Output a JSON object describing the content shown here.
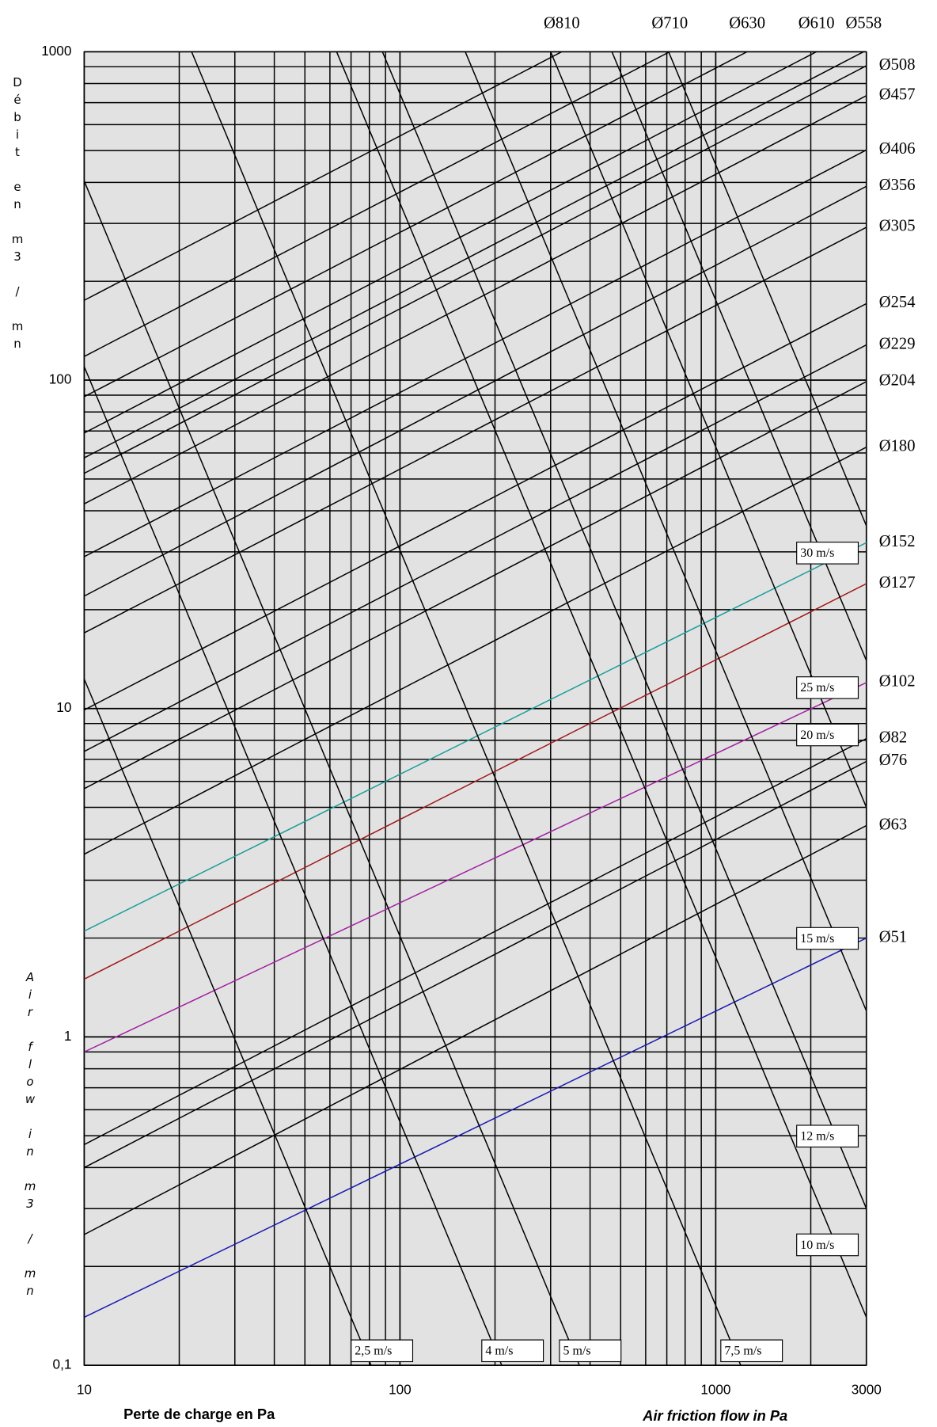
{
  "chart_data": {
    "type": "line",
    "x_label": "Perte de charge en Pa",
    "x_label_en": "Air friction flow in  Pa",
    "y_label": "Débit en m3 / mn",
    "y_label_en": "Air flow in m3 / mn",
    "log_x": true,
    "log_y": true,
    "grid": true,
    "xlim": [
      10,
      3000
    ],
    "ylim": [
      0.1,
      1000
    ],
    "xticks": [
      10,
      100,
      1000,
      3000
    ],
    "yticks": [
      {
        "value": 0.1,
        "label": "0,1"
      },
      1,
      10,
      100,
      1000
    ],
    "x_minor_ticks": [
      20,
      30,
      40,
      50,
      60,
      70,
      80,
      90,
      200,
      300,
      400,
      500,
      600,
      700,
      800,
      900,
      2000
    ],
    "y_minor_ticks": [
      0.2,
      0.3,
      0.4,
      0.5,
      0.6,
      0.7,
      0.8,
      0.9,
      2,
      3,
      4,
      5,
      6,
      7,
      8,
      9,
      20,
      30,
      40,
      50,
      60,
      70,
      80,
      90,
      200,
      300,
      400,
      500,
      600,
      700,
      800,
      900
    ],
    "series": [
      {
        "name": "Ø810",
        "color": "#000000",
        "x": [
          10,
          3000
        ],
        "values": [
          175,
          3040
        ]
      },
      {
        "name": "Ø710",
        "color": "#000000",
        "x": [
          10,
          3000
        ],
        "values": [
          118,
          2050
        ]
      },
      {
        "name": "Ø630",
        "color": "#000000",
        "x": [
          10,
          3000
        ],
        "values": [
          89,
          1545
        ]
      },
      {
        "name": "Ø610",
        "color": "#000000",
        "x": [
          10,
          3000
        ],
        "values": [
          69,
          1200
        ]
      },
      {
        "name": "Ø558",
        "color": "#000000",
        "x": [
          10,
          3000
        ],
        "values": [
          58,
          1010
        ]
      },
      {
        "name": "Ø508",
        "color": "#000000",
        "x": [
          10,
          3000
        ],
        "values": [
          52,
          906
        ]
      },
      {
        "name": "Ø457",
        "color": "#000000",
        "x": [
          10,
          3000
        ],
        "values": [
          42,
          735
        ]
      },
      {
        "name": "Ø406",
        "color": "#000000",
        "x": [
          10,
          3000
        ],
        "values": [
          29,
          502
        ]
      },
      {
        "name": "Ø356",
        "color": "#000000",
        "x": [
          10,
          3000
        ],
        "values": [
          22,
          389
        ]
      },
      {
        "name": "Ø305",
        "color": "#000000",
        "x": [
          10,
          3000
        ],
        "values": [
          17,
          292
        ]
      },
      {
        "name": "Ø254",
        "color": "#000000",
        "x": [
          10,
          3000
        ],
        "values": [
          9.9,
          171
        ]
      },
      {
        "name": "Ø229",
        "color": "#000000",
        "x": [
          10,
          3000
        ],
        "values": [
          7.4,
          128
        ]
      },
      {
        "name": "Ø204",
        "color": "#000000",
        "x": [
          10,
          3000
        ],
        "values": [
          5.7,
          99
        ]
      },
      {
        "name": "Ø180",
        "color": "#000000",
        "x": [
          10,
          3000
        ],
        "values": [
          3.6,
          62.5
        ]
      },
      {
        "name": "Ø152",
        "color": "#1a9c9c",
        "x": [
          10,
          3000
        ],
        "values": [
          2.1,
          32
        ]
      },
      {
        "name": "Ø127",
        "color": "#a01818",
        "x": [
          10,
          3000
        ],
        "values": [
          1.5,
          24
        ]
      },
      {
        "name": "Ø102",
        "color": "#a020a0",
        "x": [
          10,
          3000
        ],
        "values": [
          0.9,
          12
        ]
      },
      {
        "name": "Ø82",
        "color": "#000000",
        "x": [
          10,
          3000
        ],
        "values": [
          0.47,
          8.1
        ]
      },
      {
        "name": "Ø76",
        "color": "#000000",
        "x": [
          10,
          3000
        ],
        "values": [
          0.4,
          6.9
        ]
      },
      {
        "name": "Ø63",
        "color": "#000000",
        "x": [
          10,
          3000
        ],
        "values": [
          0.25,
          4.4
        ]
      },
      {
        "name": "Ø51",
        "color": "#1818b0",
        "x": [
          10,
          3000
        ],
        "values": [
          0.14,
          2
        ]
      }
    ],
    "velocity_series": [
      {
        "name": "2,5 m/s",
        "color": "#000000",
        "x": [
          10,
          81
        ],
        "values": [
          12.3,
          0.1
        ]
      },
      {
        "name": "4 m/s",
        "color": "#000000",
        "x": [
          10,
          210
        ],
        "values": [
          110,
          0.1
        ]
      },
      {
        "name": "5 m/s",
        "color": "#000000",
        "x": [
          10,
          370
        ],
        "values": [
          404,
          0.1
        ]
      },
      {
        "name": "7,5 m/s",
        "color": "#000000",
        "x": [
          10,
          1200
        ],
        "values": [
          6060,
          0.1
        ]
      },
      {
        "name": "10 m/s",
        "color": "#000000",
        "x": [
          63,
          3000
        ],
        "values": [
          1000,
          0.14
        ]
      },
      {
        "name": "12 m/s",
        "color": "#000000",
        "x": [
          88,
          3000
        ],
        "values": [
          1000,
          0.3
        ]
      },
      {
        "name": "15 m/s",
        "color": "#000000",
        "x": [
          161,
          3000
        ],
        "values": [
          1000,
          1.2
        ]
      },
      {
        "name": "20 m/s",
        "color": "#000000",
        "x": [
          300,
          3000
        ],
        "values": [
          1000,
          5
        ]
      },
      {
        "name": "25 m/s",
        "color": "#000000",
        "x": [
          469,
          3000
        ],
        "values": [
          1000,
          14
        ]
      },
      {
        "name": "30 m/s",
        "color": "#000000",
        "x": [
          709,
          3000
        ],
        "values": [
          1000,
          36
        ]
      }
    ]
  }
}
